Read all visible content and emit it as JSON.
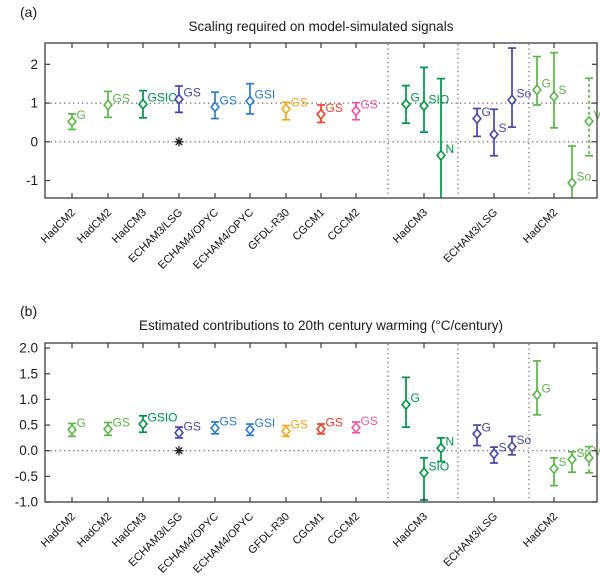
{
  "figure_title": "",
  "colors": {
    "light_green": "#5db44a",
    "dark_green": "#009245",
    "indigo": "#4547a9",
    "blue": "#2b7cc9",
    "orange": "#f2a71f",
    "red": "#e8432b",
    "pink": "#ee57a3",
    "axis": "#3c3c3c",
    "dotted_line": "#444444",
    "asterisk": "#1a1a1a"
  },
  "chart_data": [
    {
      "type": "scatter",
      "panel": "a",
      "panel_label": "(a)",
      "title": "Scaling required on model-simulated signals",
      "ylabel": "",
      "ylim": [
        -1.45,
        2.55
      ],
      "ytick_values": [
        2,
        1,
        0,
        -1
      ],
      "ytick_labels": [
        "2",
        "1",
        "0",
        "-1"
      ],
      "dotted_hlines": [
        1,
        0
      ],
      "x_categories": [
        "HadCM2",
        "HadCM2",
        "HadCM3",
        "ECHAM3/LSG",
        "ECHAM4/OPYC",
        "ECHAM4/OPYC",
        "GFDL-R30",
        "CGCM1",
        "CGCM2",
        "HadCM3",
        "ECHAM3/LSG",
        "HadCM2"
      ],
      "tick_slots": [
        0,
        1,
        2,
        3,
        4,
        5,
        6,
        7,
        8,
        10,
        13,
        16
      ],
      "points": [
        {
          "slot": 0,
          "model": "HadCM2",
          "signal": "G",
          "color": "light_green",
          "value": 0.52,
          "lo": 0.32,
          "hi": 0.72
        },
        {
          "slot": 1,
          "model": "HadCM2",
          "signal": "GS",
          "color": "light_green",
          "value": 0.95,
          "lo": 0.63,
          "hi": 1.3
        },
        {
          "slot": 2,
          "model": "HadCM3",
          "signal": "GSIO",
          "color": "dark_green",
          "value": 0.97,
          "lo": 0.62,
          "hi": 1.32
        },
        {
          "slot": 3,
          "model": "ECHAM3/LSG",
          "signal": "GS",
          "color": "indigo",
          "value": 1.1,
          "lo": 0.76,
          "hi": 1.44
        },
        {
          "slot": 4,
          "model": "ECHAM4/OPYC",
          "signal": "GS",
          "color": "blue",
          "value": 0.9,
          "lo": 0.6,
          "hi": 1.28
        },
        {
          "slot": 5,
          "model": "ECHAM4/OPYC",
          "signal": "GSI",
          "color": "blue",
          "value": 1.05,
          "lo": 0.72,
          "hi": 1.5
        },
        {
          "slot": 6,
          "model": "GFDL-R30",
          "signal": "GS",
          "color": "orange",
          "value": 0.85,
          "lo": 0.57,
          "hi": 1.02
        },
        {
          "slot": 7,
          "model": "CGCM1",
          "signal": "GS",
          "color": "red",
          "value": 0.71,
          "lo": 0.5,
          "hi": 0.95
        },
        {
          "slot": 8,
          "model": "CGCM2",
          "signal": "GS",
          "color": "pink",
          "value": 0.8,
          "lo": 0.57,
          "hi": 1.01
        },
        {
          "slot": 9,
          "model": "HadCM3",
          "signal": "G",
          "color": "dark_green",
          "value": 0.97,
          "lo": 0.48,
          "hi": 1.45
        },
        {
          "slot": 10,
          "model": "HadCM3",
          "signal": "SIO",
          "color": "dark_green",
          "value": 0.93,
          "lo": 0.25,
          "hi": 1.92
        },
        {
          "slot": 11,
          "model": "HadCM3",
          "signal": "N",
          "color": "dark_green",
          "value": -0.35,
          "lo": -1.55,
          "hi": 1.63,
          "clipped_low": true
        },
        {
          "slot": 12,
          "model": "ECHAM3/LSG",
          "signal": "G",
          "color": "indigo",
          "value": 0.6,
          "lo": 0.14,
          "hi": 0.86
        },
        {
          "slot": 13,
          "model": "ECHAM3/LSG",
          "signal": "S",
          "color": "indigo",
          "value": 0.19,
          "lo": -0.36,
          "hi": 0.84
        },
        {
          "slot": 14,
          "model": "ECHAM3/LSG",
          "signal": "So",
          "color": "indigo",
          "value": 1.08,
          "lo": 0.38,
          "hi": 2.42
        },
        {
          "slot": 15,
          "model": "HadCM2",
          "signal": "G",
          "color": "light_green",
          "value": 1.34,
          "lo": 0.95,
          "hi": 2.2
        },
        {
          "slot": 16,
          "model": "HadCM2",
          "signal": "S",
          "color": "light_green",
          "value": 1.17,
          "lo": 0.36,
          "hi": 2.3
        },
        {
          "slot": 17,
          "model": "HadCM2",
          "signal": "So",
          "color": "light_green",
          "value": -1.06,
          "lo": -1.55,
          "hi": -0.11,
          "clipped_low": true
        },
        {
          "slot": 18,
          "model": "HadCM2",
          "signal": "V",
          "color": "light_green",
          "value": 0.53,
          "lo": -0.36,
          "hi": 1.64,
          "dashed": true
        }
      ],
      "reference_marker": {
        "slot": 3,
        "model": "ECHAM3/LSG",
        "value": 0,
        "marker": "asterisk"
      }
    },
    {
      "type": "scatter",
      "panel": "b",
      "panel_label": "(b)",
      "title": "Estimated contributions to 20th century warming (°C/century)",
      "ylabel": "",
      "ylim": [
        -1.0,
        2.1
      ],
      "ytick_values": [
        2.0,
        1.5,
        1.0,
        0.5,
        0.0,
        -0.5,
        -1.0
      ],
      "ytick_labels": [
        "2.0",
        "1.5",
        "1.0",
        "0.5",
        "0.0",
        "-0.5",
        "-1.0"
      ],
      "dotted_hlines": [
        0
      ],
      "x_categories": [
        "HadCM2",
        "HadCM2",
        "HadCM3",
        "ECHAM3/LSG",
        "ECHAM4/OPYC",
        "ECHAM4/OPYC",
        "GFDL-R30",
        "CGCM1",
        "CGCM2",
        "HadCM3",
        "ECHAM3/LSG",
        "HadCM2"
      ],
      "tick_slots": [
        0,
        1,
        2,
        3,
        4,
        5,
        6,
        7,
        8,
        10,
        13,
        16
      ],
      "points": [
        {
          "slot": 0,
          "model": "HadCM2",
          "signal": "G",
          "color": "light_green",
          "value": 0.41,
          "lo": 0.28,
          "hi": 0.53
        },
        {
          "slot": 1,
          "model": "HadCM2",
          "signal": "GS",
          "color": "light_green",
          "value": 0.42,
          "lo": 0.3,
          "hi": 0.55
        },
        {
          "slot": 2,
          "model": "HadCM3",
          "signal": "GSIO",
          "color": "dark_green",
          "value": 0.52,
          "lo": 0.36,
          "hi": 0.68
        },
        {
          "slot": 3,
          "model": "ECHAM3/LSG",
          "signal": "GS",
          "color": "indigo",
          "value": 0.35,
          "lo": 0.25,
          "hi": 0.46
        },
        {
          "slot": 4,
          "model": "ECHAM4/OPYC",
          "signal": "GS",
          "color": "blue",
          "value": 0.44,
          "lo": 0.33,
          "hi": 0.56
        },
        {
          "slot": 5,
          "model": "ECHAM4/OPYC",
          "signal": "GSI",
          "color": "blue",
          "value": 0.41,
          "lo": 0.3,
          "hi": 0.52
        },
        {
          "slot": 6,
          "model": "GFDL-R30",
          "signal": "GS",
          "color": "orange",
          "value": 0.38,
          "lo": 0.28,
          "hi": 0.49
        },
        {
          "slot": 7,
          "model": "CGCM1",
          "signal": "GS",
          "color": "red",
          "value": 0.42,
          "lo": 0.33,
          "hi": 0.52
        },
        {
          "slot": 8,
          "model": "CGCM2",
          "signal": "GS",
          "color": "pink",
          "value": 0.45,
          "lo": 0.35,
          "hi": 0.56
        },
        {
          "slot": 9,
          "model": "HadCM3",
          "signal": "G",
          "color": "dark_green",
          "value": 0.9,
          "lo": 0.46,
          "hi": 1.43
        },
        {
          "slot": 10,
          "model": "HadCM3",
          "signal": "SIO",
          "color": "dark_green",
          "value": -0.43,
          "lo": -0.96,
          "hi": -0.14
        },
        {
          "slot": 11,
          "model": "HadCM3",
          "signal": "N",
          "color": "dark_green",
          "value": 0.05,
          "lo": -0.21,
          "hi": 0.25
        },
        {
          "slot": 12,
          "model": "ECHAM3/LSG",
          "signal": "G",
          "color": "indigo",
          "value": 0.33,
          "lo": 0.1,
          "hi": 0.5
        },
        {
          "slot": 13,
          "model": "ECHAM3/LSG",
          "signal": "S",
          "color": "indigo",
          "value": -0.06,
          "lo": -0.24,
          "hi": 0.07
        },
        {
          "slot": 14,
          "model": "ECHAM3/LSG",
          "signal": "So",
          "color": "indigo",
          "value": 0.08,
          "lo": -0.08,
          "hi": 0.28
        },
        {
          "slot": 15,
          "model": "HadCM2",
          "signal": "G",
          "color": "light_green",
          "value": 1.09,
          "lo": 0.7,
          "hi": 1.75
        },
        {
          "slot": 16,
          "model": "HadCM2",
          "signal": "S",
          "color": "light_green",
          "value": -0.35,
          "lo": -0.68,
          "hi": -0.14
        },
        {
          "slot": 17,
          "model": "HadCM2",
          "signal": "So",
          "color": "light_green",
          "value": -0.17,
          "lo": -0.42,
          "hi": -0.02
        },
        {
          "slot": 18,
          "model": "HadCM2",
          "signal": "V",
          "color": "light_green",
          "value": -0.14,
          "lo": -0.43,
          "hi": 0.08,
          "dashed": true
        }
      ],
      "reference_marker": {
        "slot": 3,
        "model": "ECHAM3/LSG",
        "value": 0,
        "marker": "asterisk"
      }
    }
  ]
}
